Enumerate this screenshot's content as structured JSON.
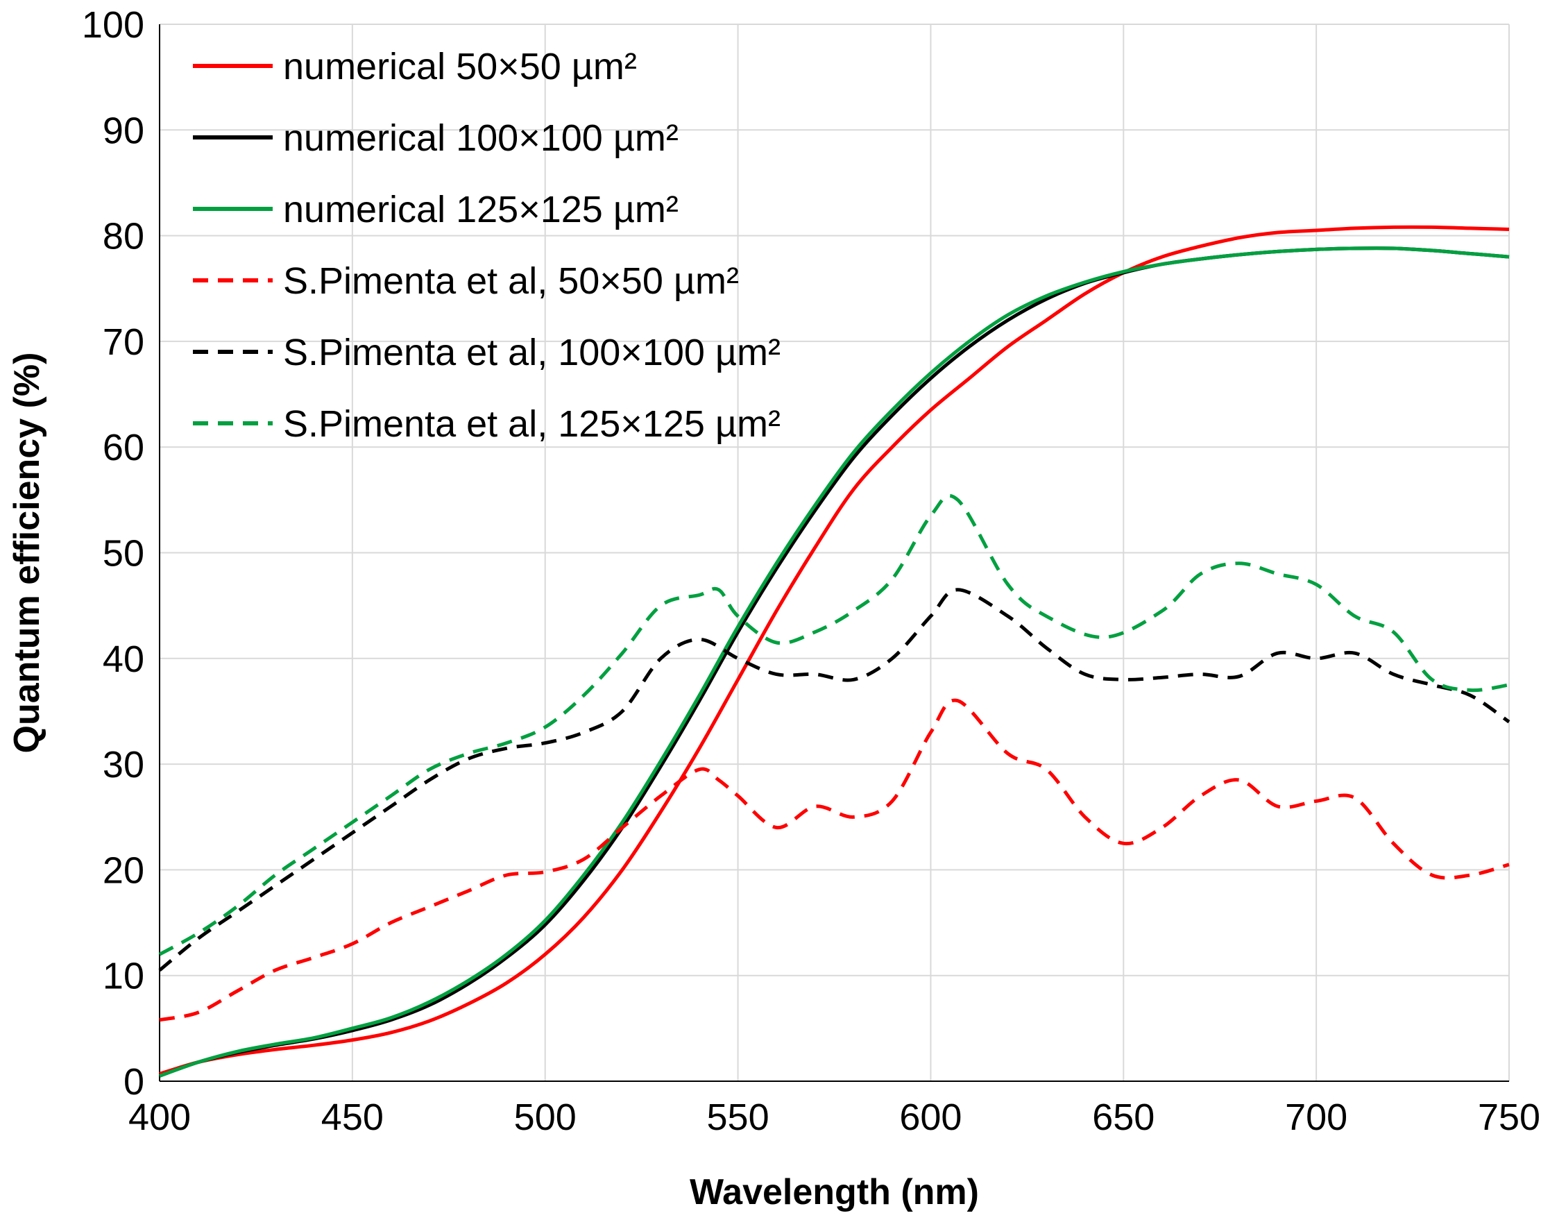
{
  "chart_data": {
    "type": "line",
    "title": "",
    "xlabel": "Wavelength (nm)",
    "ylabel": "Quantum efficiency (%)",
    "xlim": [
      400,
      750
    ],
    "ylim": [
      0,
      100
    ],
    "xticks": [
      400,
      450,
      500,
      550,
      600,
      650,
      700,
      750
    ],
    "yticks": [
      0,
      10,
      20,
      30,
      40,
      50,
      60,
      70,
      80,
      90,
      100
    ],
    "grid": true,
    "legend_position": "top-left",
    "series": [
      {
        "name": "numerical 50×50 µm²",
        "color": "#ff0000",
        "style": "solid",
        "x": [
          400,
          410,
          420,
          430,
          440,
          450,
          460,
          470,
          480,
          490,
          500,
          510,
          520,
          530,
          540,
          550,
          560,
          570,
          580,
          590,
          600,
          610,
          620,
          630,
          640,
          650,
          660,
          670,
          680,
          690,
          700,
          710,
          720,
          730,
          740,
          750
        ],
        "y": [
          0.7,
          1.8,
          2.5,
          3.0,
          3.4,
          3.9,
          4.6,
          5.7,
          7.3,
          9.3,
          12.0,
          15.5,
          20.0,
          25.5,
          31.5,
          38.0,
          44.5,
          50.5,
          56.0,
          60.0,
          63.5,
          66.5,
          69.5,
          72.0,
          74.5,
          76.5,
          78.0,
          79.0,
          79.8,
          80.3,
          80.5,
          80.7,
          80.8,
          80.8,
          80.7,
          80.6
        ]
      },
      {
        "name": "numerical 100×100 µm²",
        "color": "#000000",
        "style": "solid",
        "x": [
          400,
          410,
          420,
          430,
          440,
          450,
          460,
          470,
          480,
          490,
          500,
          510,
          520,
          530,
          540,
          550,
          560,
          570,
          580,
          590,
          600,
          610,
          620,
          630,
          640,
          650,
          660,
          670,
          680,
          690,
          700,
          710,
          720,
          730,
          740,
          750
        ],
        "y": [
          0.5,
          1.8,
          2.7,
          3.4,
          4.0,
          4.8,
          5.8,
          7.2,
          9.2,
          11.7,
          14.8,
          19.0,
          24.0,
          29.8,
          36.0,
          42.5,
          48.5,
          54.0,
          59.0,
          63.0,
          66.5,
          69.5,
          72.0,
          74.0,
          75.5,
          76.5,
          77.3,
          77.8,
          78.2,
          78.5,
          78.7,
          78.8,
          78.8,
          78.6,
          78.3,
          78.0
        ]
      },
      {
        "name": "numerical 125×125 µm²",
        "color": "#00a040",
        "style": "solid",
        "x": [
          400,
          410,
          420,
          430,
          440,
          450,
          460,
          470,
          480,
          490,
          500,
          510,
          520,
          530,
          540,
          550,
          560,
          570,
          580,
          590,
          600,
          610,
          620,
          630,
          640,
          650,
          660,
          670,
          680,
          690,
          700,
          710,
          720,
          730,
          740,
          750
        ],
        "y": [
          0.5,
          1.8,
          2.8,
          3.5,
          4.1,
          5.0,
          6.0,
          7.5,
          9.5,
          12.0,
          15.2,
          19.5,
          24.5,
          30.3,
          36.5,
          43.0,
          49.0,
          54.5,
          59.5,
          63.5,
          67.0,
          70.0,
          72.5,
          74.3,
          75.6,
          76.6,
          77.3,
          77.8,
          78.2,
          78.5,
          78.7,
          78.8,
          78.8,
          78.6,
          78.3,
          78.0
        ]
      },
      {
        "name": "S.Pimenta et al, 50×50 µm²",
        "color": "#ff0000",
        "style": "dashed",
        "x": [
          400,
          410,
          420,
          430,
          440,
          450,
          460,
          470,
          480,
          490,
          500,
          510,
          520,
          530,
          540,
          545,
          550,
          560,
          570,
          580,
          590,
          600,
          607,
          620,
          630,
          640,
          650,
          660,
          670,
          680,
          690,
          700,
          710,
          720,
          730,
          740,
          750
        ],
        "y": [
          5.8,
          6.5,
          8.5,
          10.5,
          11.7,
          13.0,
          15.0,
          16.5,
          18.0,
          19.5,
          19.8,
          21.0,
          24.0,
          27.0,
          29.5,
          28.5,
          27.0,
          24.0,
          26.0,
          25.0,
          26.5,
          33.0,
          36.0,
          31.0,
          29.5,
          25.0,
          22.5,
          24.0,
          27.0,
          28.5,
          26.0,
          26.5,
          26.8,
          22.5,
          19.5,
          19.5,
          20.5
        ]
      },
      {
        "name": "S.Pimenta et al, 100×100 µm²",
        "color": "#000000",
        "style": "dashed",
        "x": [
          400,
          410,
          420,
          430,
          440,
          450,
          460,
          470,
          480,
          490,
          500,
          510,
          520,
          530,
          540,
          550,
          560,
          570,
          580,
          590,
          600,
          607,
          620,
          630,
          640,
          650,
          660,
          670,
          680,
          690,
          700,
          710,
          720,
          730,
          740,
          750
        ],
        "y": [
          10.5,
          13.5,
          16.0,
          18.5,
          21.0,
          23.5,
          26.0,
          28.5,
          30.5,
          31.5,
          32.0,
          33.0,
          35.0,
          40.0,
          41.8,
          40.0,
          38.5,
          38.5,
          38.0,
          40.0,
          44.0,
          46.5,
          44.0,
          41.0,
          38.5,
          38.0,
          38.2,
          38.5,
          38.3,
          40.5,
          40.0,
          40.5,
          38.5,
          37.5,
          36.5,
          34.0
        ]
      },
      {
        "name": "S.Pimenta et al, 125×125 µm²",
        "color": "#00a040",
        "style": "dashed",
        "x": [
          400,
          410,
          420,
          430,
          440,
          450,
          460,
          470,
          480,
          490,
          500,
          510,
          520,
          530,
          540,
          545,
          550,
          560,
          570,
          580,
          590,
          600,
          607,
          620,
          630,
          645,
          660,
          670,
          680,
          690,
          700,
          710,
          720,
          730,
          740,
          750
        ],
        "y": [
          12.0,
          14.0,
          16.5,
          19.5,
          22.0,
          24.5,
          27.0,
          29.5,
          31.0,
          32.0,
          33.5,
          36.5,
          40.5,
          45.0,
          46.0,
          46.5,
          44.0,
          41.5,
          42.5,
          44.5,
          47.5,
          53.5,
          55.0,
          47.0,
          44.0,
          42.0,
          44.5,
          48.0,
          49.0,
          48.0,
          47.0,
          44.0,
          42.5,
          38.0,
          37.0,
          37.5
        ]
      }
    ]
  }
}
